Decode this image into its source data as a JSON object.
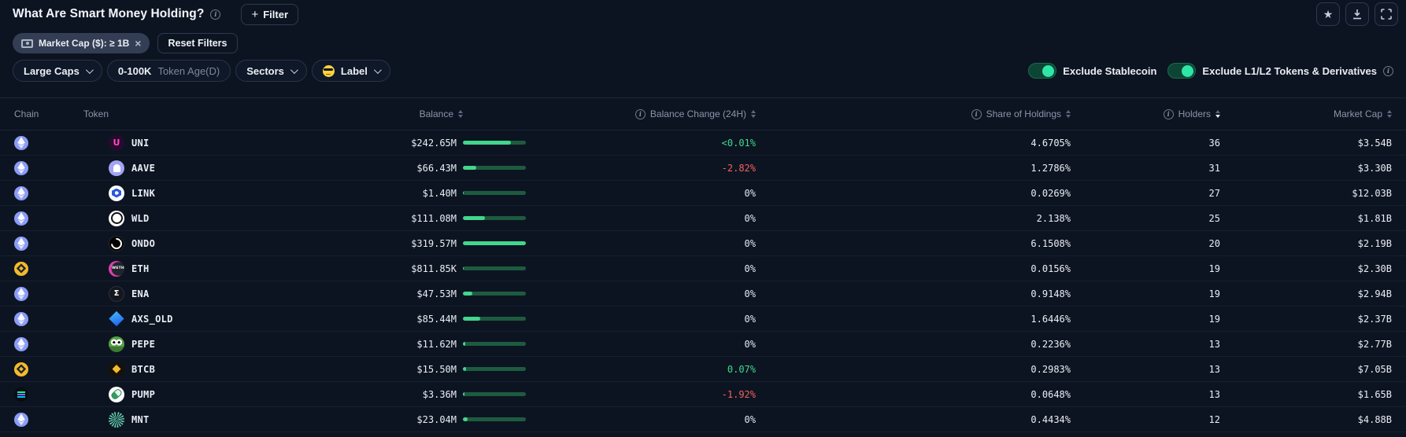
{
  "icons": {
    "plus": "+",
    "close": "×",
    "star": "★",
    "info": "i"
  },
  "header": {
    "title": "What Are Smart Money Holding?",
    "filter_button": "Filter"
  },
  "filters": {
    "chip": {
      "icon": "banknote-icon",
      "label": "Market Cap ($): ≥ 1B"
    },
    "reset_label": "Reset Filters",
    "dropdowns": [
      {
        "label": "Large Caps"
      },
      {
        "label": "0-100K",
        "suffix": "Token Age(D)"
      },
      {
        "label": "Sectors"
      },
      {
        "label": "Label",
        "icon": "sunglasses-emoji-icon"
      }
    ],
    "toggles": [
      {
        "label": "Exclude Stablecoin",
        "state": "on"
      },
      {
        "label": "Exclude L1/L2 Tokens & Derivatives",
        "state": "on"
      }
    ]
  },
  "table": {
    "columns": {
      "chain": "Chain",
      "token": "Token",
      "balance": "Balance",
      "change": "Balance Change (24H)",
      "share": "Share of Holdings",
      "holders": "Holders",
      "market_cap": "Market Cap"
    },
    "sort": {
      "active_column": "Holders",
      "direction": "desc"
    },
    "colors": {
      "bar_fill": "#43d68c",
      "bar_track": "#1d5b40",
      "positive": "#41d98d",
      "negative": "#f4625e",
      "toggle_on": "#2ee6a7"
    },
    "rows": [
      {
        "chain": "ethereum",
        "token": "UNI",
        "balance": "$242.65M",
        "bar_pct": 76,
        "change": "<0.01%",
        "change_dir": "pos",
        "share": "4.6705%",
        "holders": "36",
        "market_cap": "$3.54B"
      },
      {
        "chain": "ethereum",
        "token": "AAVE",
        "balance": "$66.43M",
        "bar_pct": 21,
        "change": "-2.82%",
        "change_dir": "neg",
        "share": "1.2786%",
        "holders": "31",
        "market_cap": "$3.30B"
      },
      {
        "chain": "ethereum",
        "token": "LINK",
        "balance": "$1.40M",
        "bar_pct": 1,
        "change": "0%",
        "change_dir": "zero",
        "share": "0.0269%",
        "holders": "27",
        "market_cap": "$12.03B"
      },
      {
        "chain": "ethereum",
        "token": "WLD",
        "balance": "$111.08M",
        "bar_pct": 35,
        "change": "0%",
        "change_dir": "zero",
        "share": "2.138%",
        "holders": "25",
        "market_cap": "$1.81B"
      },
      {
        "chain": "ethereum",
        "token": "ONDO",
        "balance": "$319.57M",
        "bar_pct": 100,
        "change": "0%",
        "change_dir": "zero",
        "share": "6.1508%",
        "holders": "20",
        "market_cap": "$2.19B"
      },
      {
        "chain": "bnb",
        "token": "ETH",
        "balance": "$811.85K",
        "bar_pct": 1,
        "change": "0%",
        "change_dir": "zero",
        "share": "0.0156%",
        "holders": "19",
        "market_cap": "$2.30B"
      },
      {
        "chain": "ethereum",
        "token": "ENA",
        "balance": "$47.53M",
        "bar_pct": 15,
        "change": "0%",
        "change_dir": "zero",
        "share": "0.9148%",
        "holders": "19",
        "market_cap": "$2.94B"
      },
      {
        "chain": "ethereum",
        "token": "AXS_OLD",
        "balance": "$85.44M",
        "bar_pct": 27,
        "change": "0%",
        "change_dir": "zero",
        "share": "1.6446%",
        "holders": "19",
        "market_cap": "$2.37B"
      },
      {
        "chain": "ethereum",
        "token": "PEPE",
        "balance": "$11.62M",
        "bar_pct": 4,
        "change": "0%",
        "change_dir": "zero",
        "share": "0.2236%",
        "holders": "13",
        "market_cap": "$2.77B"
      },
      {
        "chain": "bnb",
        "token": "BTCB",
        "balance": "$15.50M",
        "bar_pct": 5,
        "change": "0.07%",
        "change_dir": "pos",
        "share": "0.2983%",
        "holders": "13",
        "market_cap": "$7.05B"
      },
      {
        "chain": "solana",
        "token": "PUMP",
        "balance": "$3.36M",
        "bar_pct": 2,
        "change": "-1.92%",
        "change_dir": "neg",
        "share": "0.0648%",
        "holders": "13",
        "market_cap": "$1.65B"
      },
      {
        "chain": "ethereum",
        "token": "MNT",
        "balance": "$23.04M",
        "bar_pct": 7,
        "change": "0%",
        "change_dir": "zero",
        "share": "0.4434%",
        "holders": "12",
        "market_cap": "$4.88B"
      }
    ]
  }
}
